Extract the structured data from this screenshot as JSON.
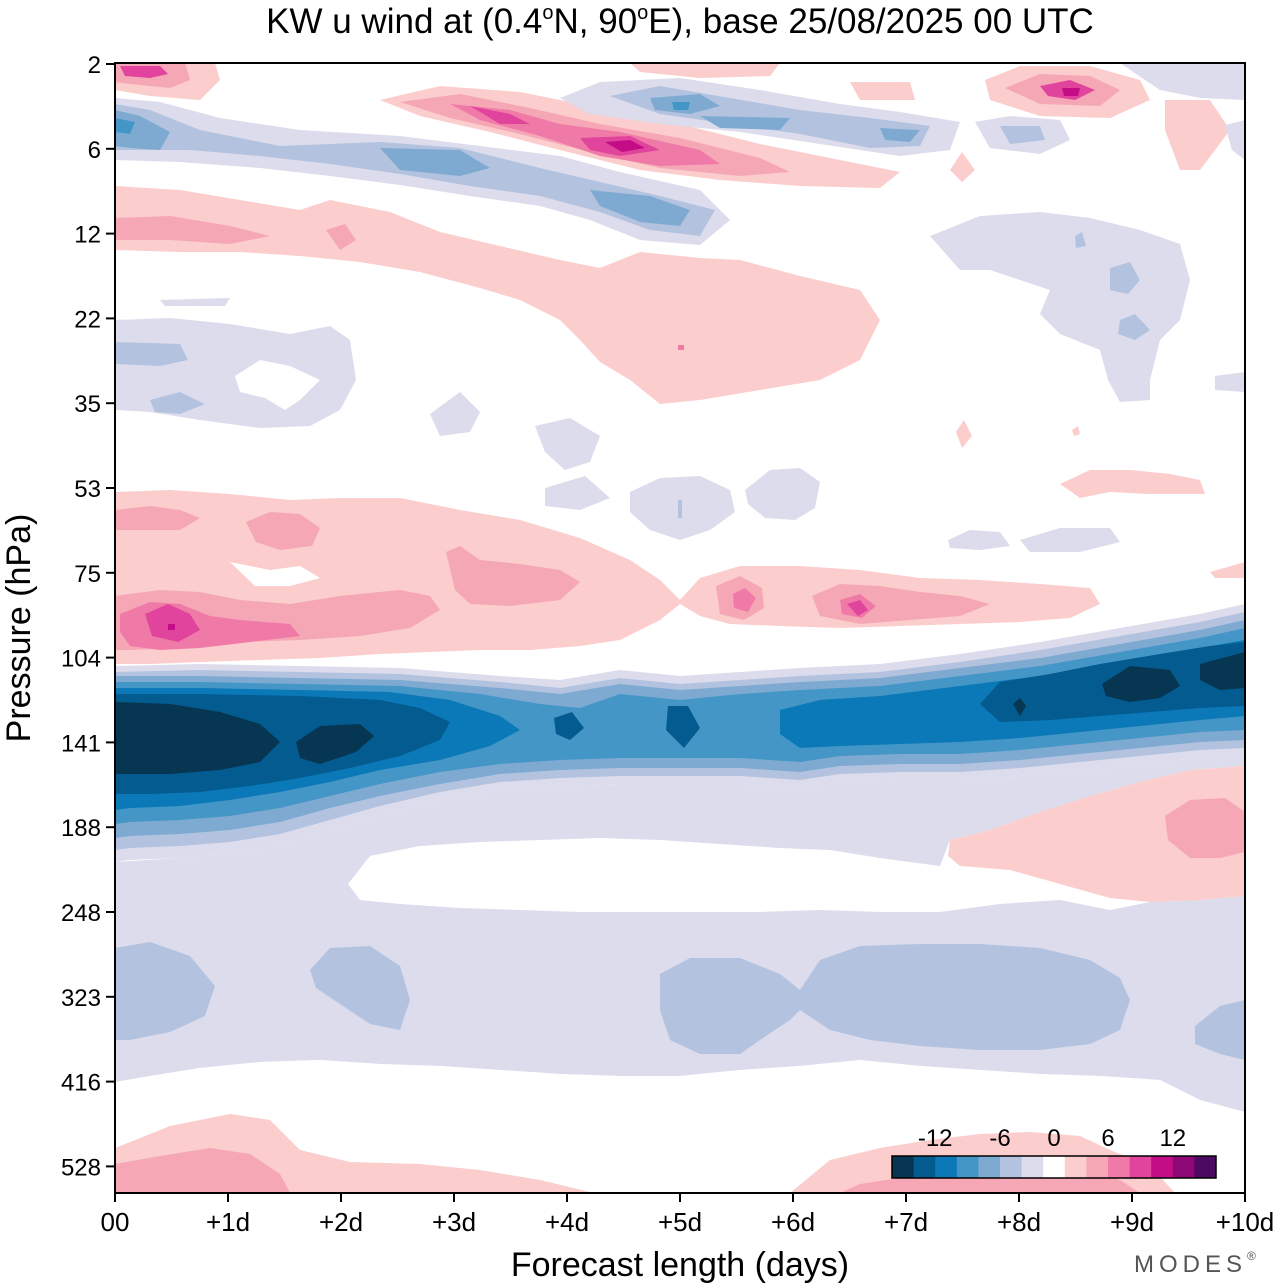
{
  "chart_data": {
    "type": "heatmap",
    "subtype": "filled-contour (time-pressure cross-section)",
    "title_main": "KW u wind at (0.4",
    "title_deg1": "o",
    "title_mid": "N, 90",
    "title_deg2": "o",
    "title_end": "E),  base 25/08/2025  00 UTC",
    "xlabel": "Forecast length (days)",
    "ylabel": "Pressure (hPa)",
    "x_ticks": [
      "00",
      "+1d",
      "+2d",
      "+3d",
      "+4d",
      "+5d",
      "+6d",
      "+7d",
      "+8d",
      "+9d",
      "+10d"
    ],
    "x_range_days": [
      0,
      10
    ],
    "y_ticks": [
      "2",
      "6",
      "12",
      "22",
      "35",
      "53",
      "75",
      "104",
      "141",
      "188",
      "248",
      "323",
      "416",
      "528"
    ],
    "y_axis": "pressure levels, log-like, top = 2 hPa, bottom ~ 620 hPa",
    "colorbar": {
      "tick_labels": [
        "-12",
        "-6",
        "0",
        "6",
        "12"
      ],
      "tick_values": [
        -12,
        -6,
        0,
        6,
        12
      ],
      "bounds": [
        -16,
        -14,
        -12,
        -10,
        -8,
        -6,
        -4,
        -2,
        2,
        4,
        6,
        8,
        10,
        12,
        14,
        16
      ],
      "colors": [
        "#063651",
        "#035b8f",
        "#0b78b8",
        "#4496c6",
        "#7eaad2",
        "#b3c3df",
        "#dcdcec",
        "#ffffff",
        "#fbcdcd",
        "#f6a7b6",
        "#f07aa7",
        "#e0449d",
        "#c20d86",
        "#8d0876",
        "#4c0a62"
      ]
    },
    "features": [
      {
        "name": "main easterly (negative) jet",
        "pressure_hPa": "110-170",
        "days": "0-10",
        "min_value": -16,
        "note": "strongest near 00 to +2d, rising in height toward +10d"
      },
      {
        "name": "westerly (positive) band",
        "pressure_hPa": "60-100",
        "days": "0-9.5",
        "max_value": 12
      },
      {
        "name": "weak negative troposphere band",
        "pressure_hPa": "200-450",
        "days": "0-10",
        "min_value": -6
      },
      {
        "name": "upper stratosphere alternating bands",
        "pressure_hPa": "2-14",
        "days": "0-10",
        "range": [
          -8,
          12
        ]
      },
      {
        "name": "weak positive near-surface lobe",
        "pressure_hPa": "480-620",
        "days": "0-3",
        "max_value": 4
      }
    ],
    "brand": "MODES",
    "brand_mark": "®"
  }
}
